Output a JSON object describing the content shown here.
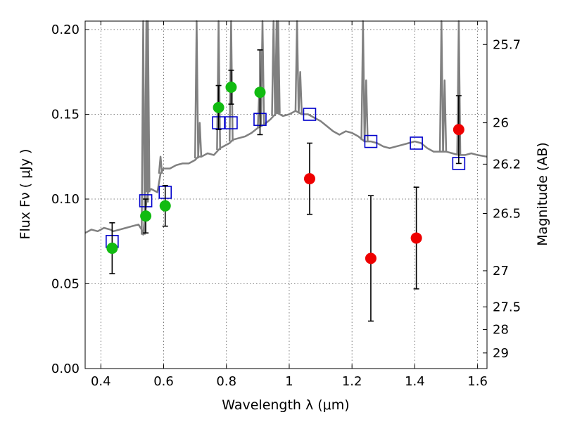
{
  "chart_data": {
    "type": "scatter",
    "title": "",
    "xlabel": "Wavelength  λ (μm)",
    "ylabel": "Flux  Fν  ( μJy )",
    "ylabel_right": "Magnitude (AB)",
    "xlim": [
      0.35,
      1.63
    ],
    "ylim": [
      0.0,
      0.205
    ],
    "grid": true,
    "x_ticks": [
      0.4,
      0.6,
      0.8,
      1.0,
      1.2,
      1.4,
      1.6
    ],
    "x_tick_labels": [
      "0.4",
      "0.6",
      "0.8",
      "1",
      "1.2",
      "1.4",
      "1.6"
    ],
    "y_ticks": [
      0.0,
      0.05,
      0.1,
      0.15,
      0.2
    ],
    "y_tick_labels": [
      "0.00",
      "0.05",
      "0.10",
      "0.15",
      "0.20"
    ],
    "right_ticks": [
      {
        "label": "25.7",
        "flux": 0.1912
      },
      {
        "label": "26",
        "flux": 0.145
      },
      {
        "label": "26.2",
        "flux": 0.1206
      },
      {
        "label": "26.5",
        "flux": 0.0915
      },
      {
        "label": "27",
        "flux": 0.0577
      },
      {
        "label": "27.5",
        "flux": 0.0364
      },
      {
        "label": "28",
        "flux": 0.023
      },
      {
        "label": "29",
        "flux": 0.0092
      }
    ],
    "series": [
      {
        "name": "model-spectrum",
        "kind": "line",
        "color": "#808080",
        "x": [
          0.35,
          0.37,
          0.39,
          0.41,
          0.43,
          0.44,
          0.46,
          0.48,
          0.5,
          0.52,
          0.53,
          0.535,
          0.54,
          0.545,
          0.55,
          0.56,
          0.57,
          0.58,
          0.59,
          0.6,
          0.62,
          0.64,
          0.66,
          0.68,
          0.7,
          0.71,
          0.72,
          0.74,
          0.76,
          0.78,
          0.8,
          0.81,
          0.82,
          0.84,
          0.86,
          0.88,
          0.9,
          0.92,
          0.94,
          0.96,
          0.98,
          1.0,
          1.02,
          1.04,
          1.06,
          1.08,
          1.1,
          1.12,
          1.14,
          1.16,
          1.18,
          1.2,
          1.22,
          1.24,
          1.26,
          1.28,
          1.3,
          1.32,
          1.34,
          1.36,
          1.38,
          1.4,
          1.42,
          1.44,
          1.46,
          1.48,
          1.5,
          1.52,
          1.54,
          1.56,
          1.58,
          1.6,
          1.63
        ],
        "y": [
          0.08,
          0.082,
          0.081,
          0.083,
          0.082,
          0.081,
          0.082,
          0.083,
          0.084,
          0.085,
          0.082,
          0.079,
          0.09,
          0.098,
          0.104,
          0.106,
          0.105,
          0.104,
          0.115,
          0.118,
          0.118,
          0.12,
          0.121,
          0.121,
          0.123,
          0.125,
          0.125,
          0.127,
          0.126,
          0.13,
          0.132,
          0.133,
          0.135,
          0.136,
          0.137,
          0.139,
          0.142,
          0.144,
          0.147,
          0.151,
          0.149,
          0.15,
          0.152,
          0.15,
          0.15,
          0.148,
          0.146,
          0.143,
          0.14,
          0.138,
          0.14,
          0.139,
          0.137,
          0.134,
          0.134,
          0.133,
          0.131,
          0.13,
          0.131,
          0.132,
          0.133,
          0.134,
          0.133,
          0.13,
          0.128,
          0.128,
          0.128,
          0.127,
          0.126,
          0.126,
          0.127,
          0.126,
          0.125
        ]
      },
      {
        "name": "model-emission-lines",
        "kind": "spikes",
        "color": "#808080",
        "x": [
          0.535,
          0.545,
          0.55,
          0.59,
          0.705,
          0.715,
          0.775,
          0.815,
          0.905,
          0.915,
          0.95,
          0.96,
          0.965,
          1.025,
          1.035,
          1.235,
          1.245,
          1.485,
          1.495,
          1.54
        ],
        "y": [
          0.205,
          0.205,
          0.205,
          0.125,
          0.205,
          0.145,
          0.205,
          0.205,
          0.165,
          0.205,
          0.205,
          0.205,
          0.205,
          0.205,
          0.175,
          0.205,
          0.17,
          0.205,
          0.17,
          0.205
        ]
      },
      {
        "name": "model-band-fluxes",
        "kind": "open-square",
        "color": "#0000cc",
        "x": [
          0.436,
          0.543,
          0.605,
          0.775,
          0.815,
          0.907,
          1.065,
          1.26,
          1.405,
          1.54
        ],
        "y": [
          0.075,
          0.099,
          0.104,
          0.145,
          0.145,
          0.147,
          0.15,
          0.134,
          0.133,
          0.121
        ]
      },
      {
        "name": "observed-optical",
        "kind": "filled-circle",
        "color": "#11bb11",
        "x": [
          0.436,
          0.543,
          0.605,
          0.775,
          0.815,
          0.907
        ],
        "y": [
          0.071,
          0.09,
          0.096,
          0.154,
          0.166,
          0.163
        ],
        "err": [
          0.015,
          0.01,
          0.012,
          0.013,
          0.01,
          0.025
        ]
      },
      {
        "name": "observed-infrared",
        "kind": "filled-circle",
        "color": "#ee0000",
        "x": [
          1.065,
          1.26,
          1.405,
          1.54
        ],
        "y": [
          0.112,
          0.065,
          0.077,
          0.141
        ],
        "err": [
          0.021,
          0.037,
          0.03,
          0.02
        ]
      }
    ]
  }
}
